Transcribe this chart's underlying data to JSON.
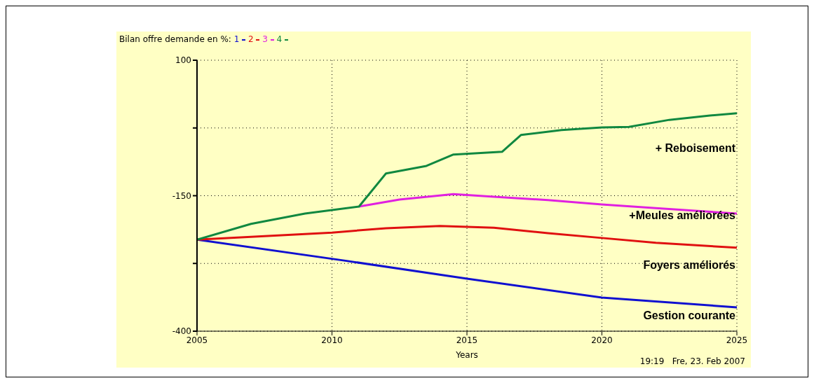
{
  "chart_data": {
    "type": "line",
    "title": "Bilan offre demande en %:",
    "xlabel": "Years",
    "xlim": [
      2005,
      2025
    ],
    "xticks": [
      2005,
      2010,
      2015,
      2020,
      2025
    ],
    "ylim": [
      -400,
      100
    ],
    "yticks": [
      -400,
      {
        "value": -275,
        "label": null
      },
      -150,
      {
        "value": -25,
        "label": null
      },
      100
    ],
    "grid": true,
    "legend": "top left",
    "marker": "none",
    "line_style": "solid",
    "series": [
      {
        "name": "1",
        "color": "#1010d0",
        "x": [
          2005,
          2010.5,
          2015,
          2020,
          2025
        ],
        "values": [
          -231,
          -270,
          -303,
          -338,
          -356
        ]
      },
      {
        "name": "2",
        "color": "#e01010",
        "x": [
          2005,
          2010,
          2012,
          2014,
          2016,
          2018,
          2020,
          2022,
          2025
        ],
        "values": [
          -231,
          -218,
          -210,
          -206,
          -209,
          -219,
          -228,
          -237,
          -246
        ]
      },
      {
        "name": "3",
        "color": "#e020e0",
        "x": [
          2011,
          2012.5,
          2014.5,
          2016,
          2018,
          2020,
          2022,
          2025
        ],
        "values": [
          -170,
          -157,
          -147,
          -152,
          -158,
          -166,
          -173,
          -183
        ]
      },
      {
        "name": "4",
        "color": "#108840",
        "x": [
          2005,
          2007,
          2009,
          2011,
          2012,
          2013.5,
          2014.5,
          2016.3,
          2017,
          2018.5,
          2020,
          2021,
          2022.5,
          2024,
          2025
        ],
        "values": [
          -231,
          -202,
          -183,
          -170,
          -109,
          -95,
          -74,
          -69,
          -38,
          -29,
          -24,
          -23,
          -10,
          -2,
          2
        ]
      }
    ],
    "annotations": [
      "+ Reboisement",
      "+Meules améliorées",
      "Foyers améliorés",
      "Gestion courante",
      "19:19   Fre, 23. Feb 2007"
    ]
  }
}
